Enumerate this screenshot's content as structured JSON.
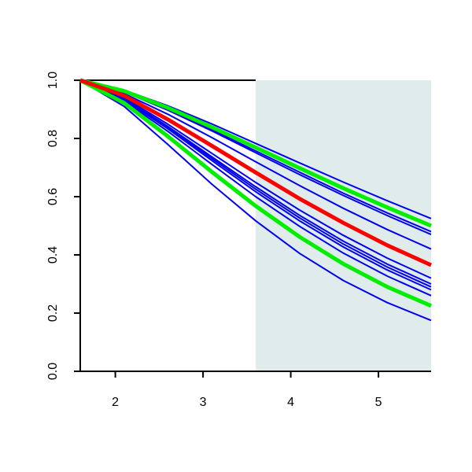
{
  "chart_data": {
    "type": "line",
    "x": [
      1.6,
      2.1,
      2.6,
      3.1,
      3.6,
      4.1,
      4.6,
      5.1,
      5.6
    ],
    "xlim": [
      1.6,
      5.6
    ],
    "ylim": [
      0,
      1
    ],
    "xticks": [
      2,
      3,
      4,
      5
    ],
    "yticks": [
      {
        "value": 0,
        "label": "0.0"
      },
      0.2,
      0.4,
      0.6,
      0.8,
      {
        "value": 1,
        "label": "1.0"
      }
    ],
    "highlight_x": [
      3.6,
      5.6
    ],
    "highlight_color": "#e0ecec",
    "series": [
      {
        "color": "#0000ee",
        "values": [
          1,
          0.966,
          0.912,
          0.85,
          0.783,
          0.716,
          0.65,
          0.586,
          0.525
        ]
      },
      {
        "color": "#0000ee",
        "values": [
          1,
          0.961,
          0.9,
          0.83,
          0.757,
          0.684,
          0.612,
          0.544,
          0.48
        ]
      },
      {
        "color": "#0000ee",
        "values": [
          1,
          0.96,
          0.897,
          0.826,
          0.751,
          0.676,
          0.604,
          0.535,
          0.47
        ]
      },
      {
        "color": "#0000ee",
        "values": [
          1,
          0.954,
          0.883,
          0.803,
          0.72,
          0.638,
          0.56,
          0.487,
          0.42
        ]
      },
      {
        "color": "#0000ee",
        "values": [
          1,
          0.94,
          0.849,
          0.749,
          0.649,
          0.554,
          0.467,
          0.389,
          0.32
        ]
      },
      {
        "color": "#0000ee",
        "values": [
          1,
          0.937,
          0.841,
          0.737,
          0.634,
          0.536,
          0.447,
          0.368,
          0.3
        ]
      },
      {
        "color": "#0000ee",
        "values": [
          1,
          0.935,
          0.837,
          0.731,
          0.626,
          0.527,
          0.437,
          0.358,
          0.29
        ]
      },
      {
        "color": "#0000ee",
        "values": [
          1,
          0.933,
          0.833,
          0.724,
          0.617,
          0.517,
          0.427,
          0.348,
          0.28
        ]
      },
      {
        "color": "#0000ee",
        "values": [
          1,
          0.929,
          0.824,
          0.711,
          0.6,
          0.498,
          0.406,
          0.327,
          0.26
        ]
      },
      {
        "color": "#0000ee",
        "values": [
          1,
          0.91,
          0.779,
          0.643,
          0.517,
          0.405,
          0.312,
          0.236,
          0.175
        ]
      },
      {
        "color": "#00ee00",
        "width": 5,
        "values": [
          1,
          0.963,
          0.905,
          0.839,
          0.769,
          0.698,
          0.629,
          0.563,
          0.5
        ]
      },
      {
        "color": "#00ee00",
        "width": 5,
        "values": [
          1,
          0.922,
          0.807,
          0.685,
          0.568,
          0.462,
          0.369,
          0.29,
          0.225
        ]
      },
      {
        "color": "#ff0000",
        "width": 5,
        "values": [
          1,
          0.947,
          0.865,
          0.775,
          0.683,
          0.593,
          0.51,
          0.433,
          0.365
        ]
      }
    ]
  }
}
